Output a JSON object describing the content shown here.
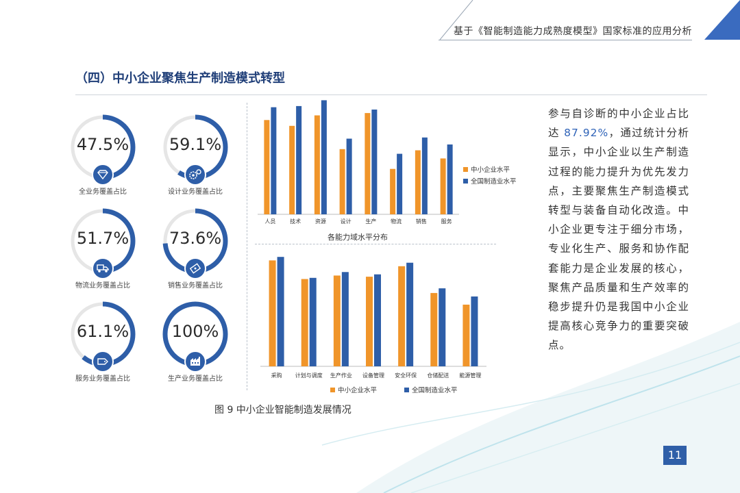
{
  "header": {
    "title": "基于《智能制造能力成熟度模型》国家标准的应用分析"
  },
  "section": {
    "title": "（四）中小企业聚焦生产制造模式转型"
  },
  "colors": {
    "orange": "#f0952a",
    "blue": "#2e5ea8",
    "navy": "#1f3e78",
    "track": "#e6e6e6"
  },
  "gauges": [
    {
      "value": "47.5%",
      "pct": 0.475,
      "caption": "全业务覆盖占比",
      "icon": "diamond-icon"
    },
    {
      "value": "59.1%",
      "pct": 0.591,
      "caption": "设计业务覆盖占比",
      "icon": "gears-icon"
    },
    {
      "value": "51.7%",
      "pct": 0.517,
      "caption": "物流业务覆盖占比",
      "icon": "truck-icon"
    },
    {
      "value": "73.6%",
      "pct": 0.736,
      "caption": "销售业务覆盖占比",
      "icon": "ticket-icon"
    },
    {
      "value": "61.1%",
      "pct": 0.611,
      "caption": "服务业务覆盖占比",
      "icon": "tag-icon"
    },
    {
      "value": "100%",
      "pct": 1.0,
      "caption": "生产业务覆盖占比",
      "icon": "factory-icon"
    }
  ],
  "chart_data": [
    {
      "type": "bar",
      "title": "各能力域水平分布",
      "categories": [
        "人员",
        "技术",
        "资源",
        "设计",
        "生产",
        "物流",
        "销售",
        "服务"
      ],
      "series": [
        {
          "name": "中小企业水平",
          "values": [
            0.81,
            0.76,
            0.85,
            0.56,
            0.87,
            0.39,
            0.55,
            0.48
          ]
        },
        {
          "name": "全国制造业水平",
          "values": [
            0.92,
            0.93,
            0.98,
            0.65,
            0.9,
            0.52,
            0.66,
            0.6
          ]
        }
      ],
      "ylim": [
        0,
        1
      ],
      "legend": "right"
    },
    {
      "type": "bar",
      "categories": [
        "采购",
        "计划与调度",
        "生产作业",
        "设备管理",
        "安全环保",
        "仓储配送",
        "能源管理"
      ],
      "series": [
        {
          "name": "中小企业水平",
          "values": [
            0.91,
            0.75,
            0.78,
            0.77,
            0.86,
            0.63,
            0.53
          ]
        },
        {
          "name": "全国制造业水平",
          "values": [
            0.94,
            0.76,
            0.81,
            0.79,
            0.89,
            0.67,
            0.6
          ]
        }
      ],
      "ylim": [
        0,
        1
      ],
      "legend": "bottom"
    }
  ],
  "caption": "图 9 中小企业智能制造发展情况",
  "paragraph": {
    "before": "参与自诊断的中小企业占比达 ",
    "highlight": "87.92%",
    "after": "，通过统计分析显示，中小企业以生产制造过程的能力提升为优先发力点，主要聚焦生产制造模式转型与装备自动化改造。中小企业更专注于细分市场，专业化生产、服务和协作配套能力是企业发展的核心，聚焦产品质量和生产效率的稳步提升仍是我国中小企业提高核心竞争力的重要突破点。"
  },
  "page_number": "11"
}
